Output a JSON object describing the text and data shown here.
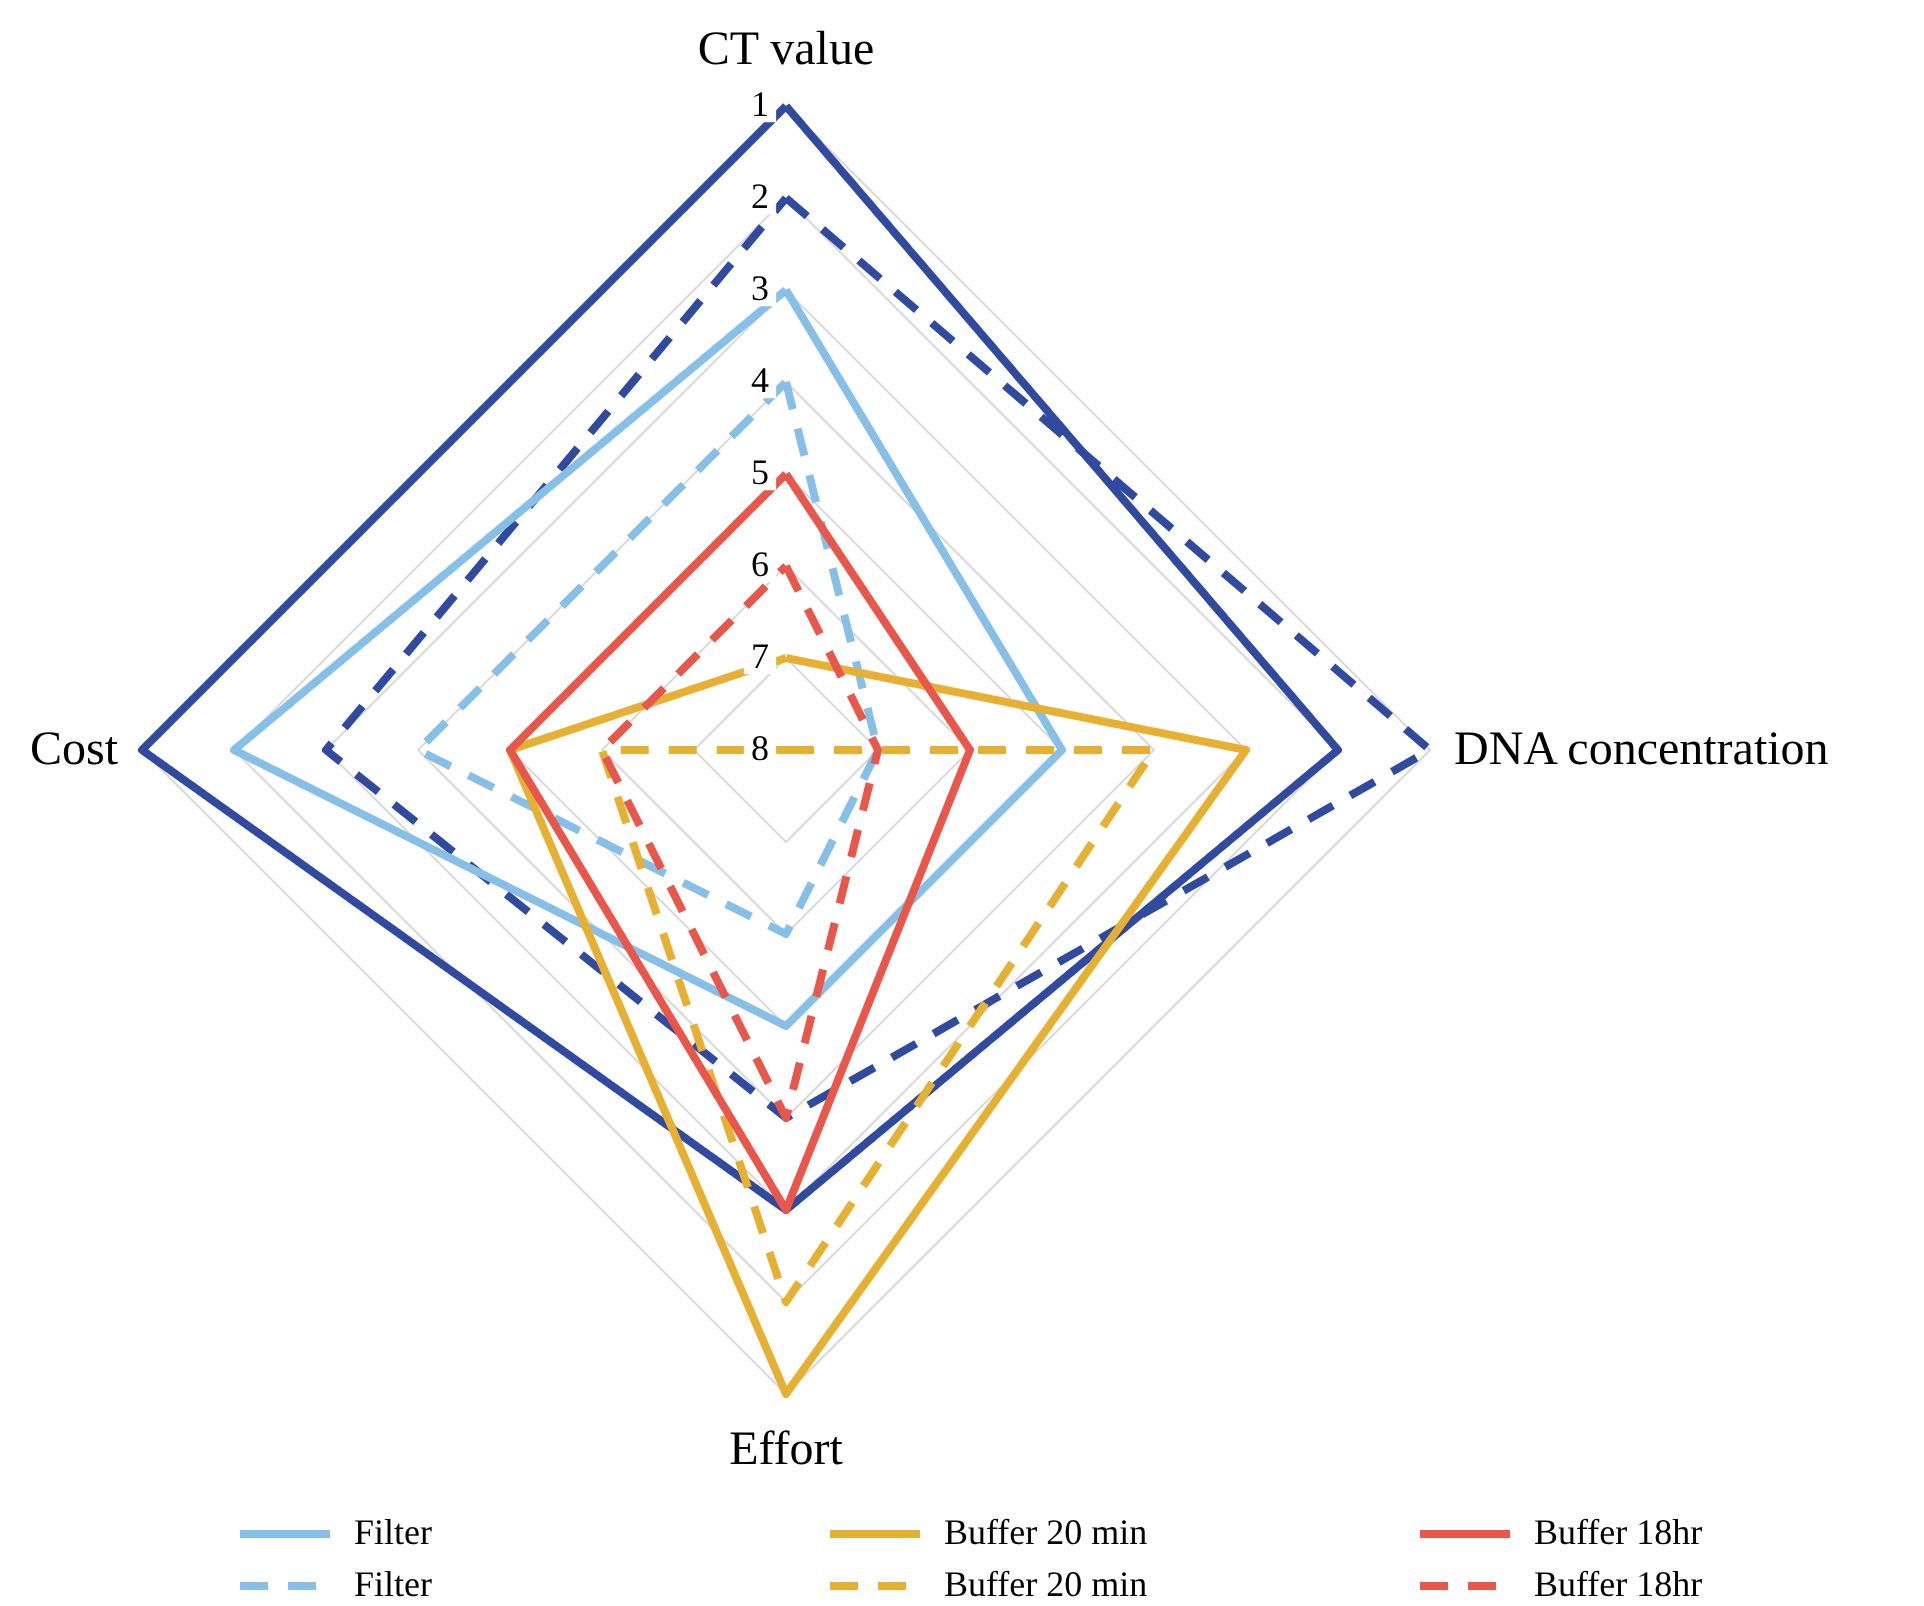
{
  "chart_data": {
    "type": "radar",
    "categories": [
      "CT value",
      "DNA concentration",
      "Effort",
      "Cost"
    ],
    "ylim": [
      8,
      1
    ],
    "yticks": [
      1,
      2,
      3,
      4,
      5,
      6,
      7,
      8
    ],
    "grid": true,
    "legend": "bottom",
    "series": [
      {
        "color": "#2f4a9e",
        "line_style": "solid",
        "values": [
          1,
          2,
          3,
          1
        ]
      },
      {
        "color": "#2f4a9e",
        "line_style": "dashed",
        "values": [
          2,
          1,
          4,
          3
        ]
      },
      {
        "name": "Filter",
        "color": "#86c0e8",
        "line_style": "solid",
        "values": [
          3,
          5,
          5,
          2
        ]
      },
      {
        "name": "Filter",
        "color": "#86c0e8",
        "line_style": "dashed",
        "values": [
          4,
          7,
          6,
          4
        ]
      },
      {
        "name": "Buffer 20 min",
        "color": "#e6b133",
        "line_style": "solid",
        "values": [
          7,
          3,
          1,
          5
        ]
      },
      {
        "name": "Buffer 20 min",
        "color": "#e6b133",
        "line_style": "dashed",
        "values": [
          8,
          4,
          2,
          6
        ]
      },
      {
        "name": "Buffer 18hr",
        "color": "#e8574a",
        "line_style": "solid",
        "values": [
          5,
          6,
          3,
          5
        ]
      },
      {
        "name": "Buffer 18hr",
        "color": "#e8574a",
        "line_style": "dashed",
        "values": [
          6,
          7,
          4,
          6
        ]
      }
    ]
  }
}
